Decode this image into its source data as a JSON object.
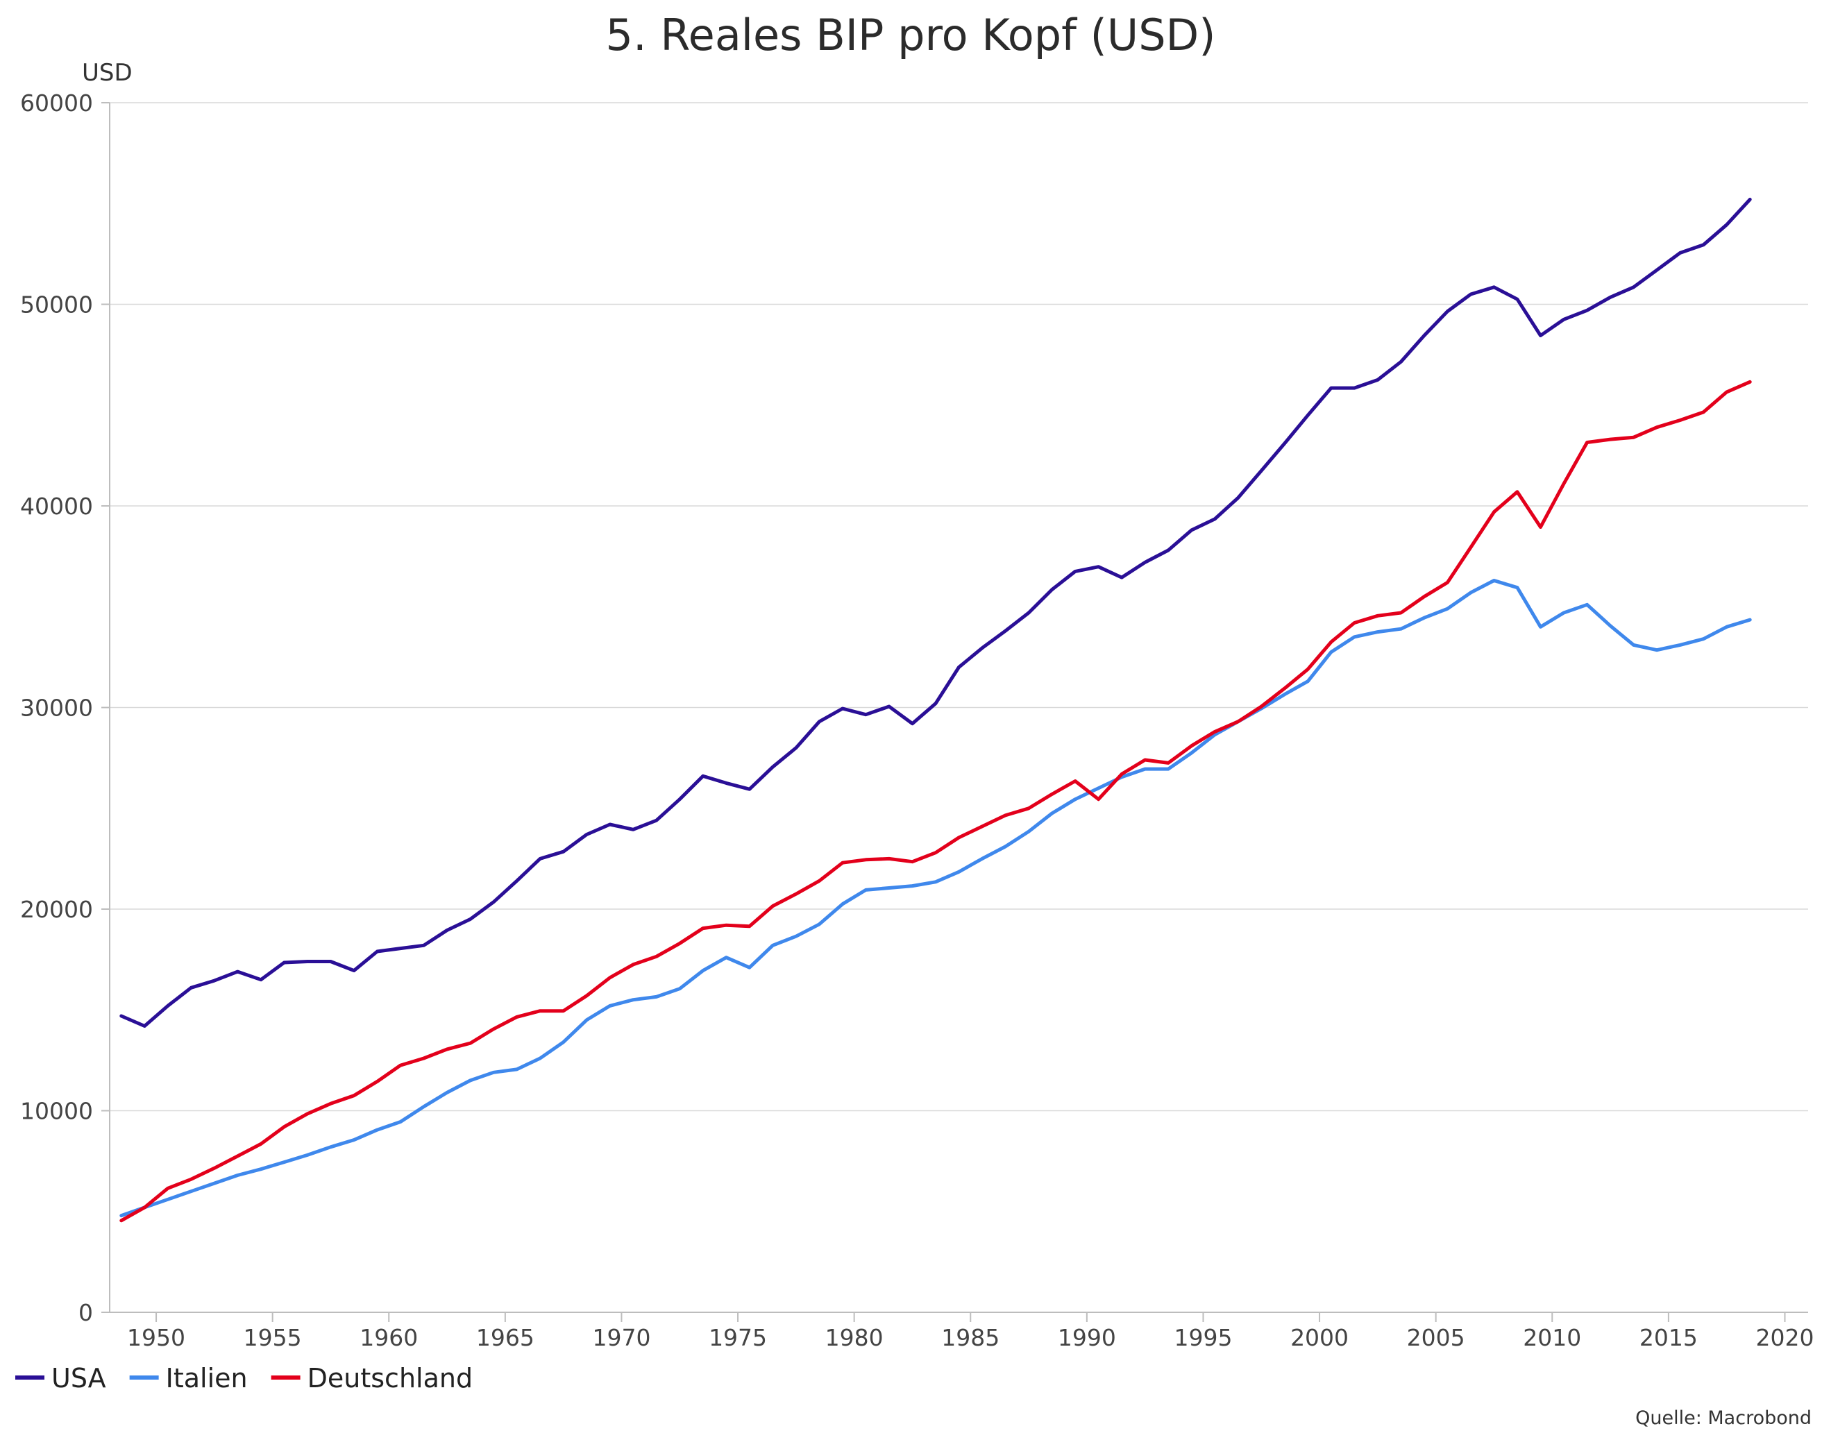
{
  "chart_data": {
    "type": "line",
    "title": "5. Reales BIP pro Kopf (USD)",
    "y_unit": "USD",
    "xlim": [
      1948,
      2021
    ],
    "ylim": [
      0,
      60000
    ],
    "x_ticks": [
      1950,
      1955,
      1960,
      1965,
      1970,
      1975,
      1980,
      1985,
      1990,
      1995,
      2000,
      2005,
      2010,
      2015,
      2020
    ],
    "y_ticks": [
      0,
      10000,
      20000,
      30000,
      40000,
      50000,
      60000
    ],
    "grid": "horizontal",
    "legend_position": "bottom-left",
    "source": "Quelle: Macrobond",
    "x": [
      1948.5,
      1949.5,
      1950.5,
      1951.5,
      1952.5,
      1953.5,
      1954.5,
      1955.5,
      1956.5,
      1957.5,
      1958.5,
      1959.5,
      1960.5,
      1961.5,
      1962.5,
      1963.5,
      1964.5,
      1965.5,
      1966.5,
      1967.5,
      1968.5,
      1969.5,
      1970.5,
      1971.5,
      1972.5,
      1973.5,
      1974.5,
      1975.5,
      1976.5,
      1977.5,
      1978.5,
      1979.5,
      1980.5,
      1981.5,
      1982.5,
      1983.5,
      1984.5,
      1985.5,
      1986.5,
      1987.5,
      1988.5,
      1989.5,
      1990.5,
      1991.5,
      1992.5,
      1993.5,
      1994.5,
      1995.5,
      1996.5,
      1997.5,
      1998.5,
      1999.5,
      2000.5,
      2001.5,
      2002.5,
      2003.5,
      2004.5,
      2005.5,
      2006.5,
      2007.5,
      2008.5,
      2009.5,
      2010.5,
      2011.5,
      2012.5,
      2013.5,
      2014.5,
      2015.5,
      2016.5,
      2017.5,
      2018.5
    ],
    "series": [
      {
        "name": "USA",
        "color": "#2a0f96",
        "values": [
          14700,
          14200,
          15200,
          16100,
          16450,
          16900,
          16500,
          17350,
          17400,
          17400,
          16950,
          17900,
          18050,
          18200,
          18950,
          19500,
          20350,
          21400,
          22500,
          22850,
          23700,
          24200,
          23950,
          24400,
          25450,
          26600,
          26250,
          25950,
          27050,
          28000,
          29300,
          29950,
          29650,
          30050,
          29200,
          30200,
          32000,
          32950,
          33800,
          34700,
          35850,
          36750,
          36980,
          36450,
          37200,
          37800,
          38800,
          39350,
          40400,
          41750,
          43100,
          44500,
          45850,
          45850,
          46250,
          47150,
          48450,
          49650,
          50500,
          50850,
          50250,
          48450,
          49250,
          49700,
          50350,
          50850,
          51700,
          52550,
          52950,
          53950,
          55200
        ]
      },
      {
        "name": "Italien",
        "color": "#3f88ec",
        "values": [
          4800,
          5200,
          5600,
          6000,
          6400,
          6800,
          7100,
          7450,
          7800,
          8200,
          8550,
          9050,
          9450,
          10200,
          10900,
          11500,
          11900,
          12050,
          12600,
          13400,
          14500,
          15200,
          15500,
          15650,
          16050,
          16950,
          17600,
          17100,
          18200,
          18650,
          19250,
          20250,
          20950,
          21050,
          21150,
          21350,
          21850,
          22500,
          23100,
          23850,
          24750,
          25450,
          26000,
          26550,
          26950,
          26950,
          27750,
          28650,
          29300,
          29950,
          30650,
          31300,
          32750,
          33500,
          33750,
          33900,
          34450,
          34900,
          35700,
          36300,
          35950,
          34000,
          34700,
          35100,
          34050,
          33100,
          32850,
          33100,
          33400,
          34000,
          34350
        ]
      },
      {
        "name": "Deutschland",
        "color": "#e3001b",
        "values": [
          4550,
          5200,
          6150,
          6600,
          7150,
          7750,
          8350,
          9200,
          9850,
          10350,
          10750,
          11450,
          12250,
          12600,
          13050,
          13350,
          14050,
          14650,
          14950,
          14950,
          15700,
          16600,
          17250,
          17650,
          18300,
          19050,
          19200,
          19150,
          20150,
          20750,
          21400,
          22300,
          22450,
          22500,
          22350,
          22800,
          23550,
          24100,
          24650,
          25000,
          25700,
          26350,
          25450,
          26700,
          27400,
          27250,
          28100,
          28800,
          29300,
          30050,
          30950,
          31900,
          33250,
          34200,
          34550,
          34700,
          35500,
          36200,
          37950,
          39700,
          40700,
          38950,
          41100,
          43150,
          43300,
          43400,
          43900,
          44250,
          44650,
          45650,
          46150
        ]
      }
    ]
  }
}
